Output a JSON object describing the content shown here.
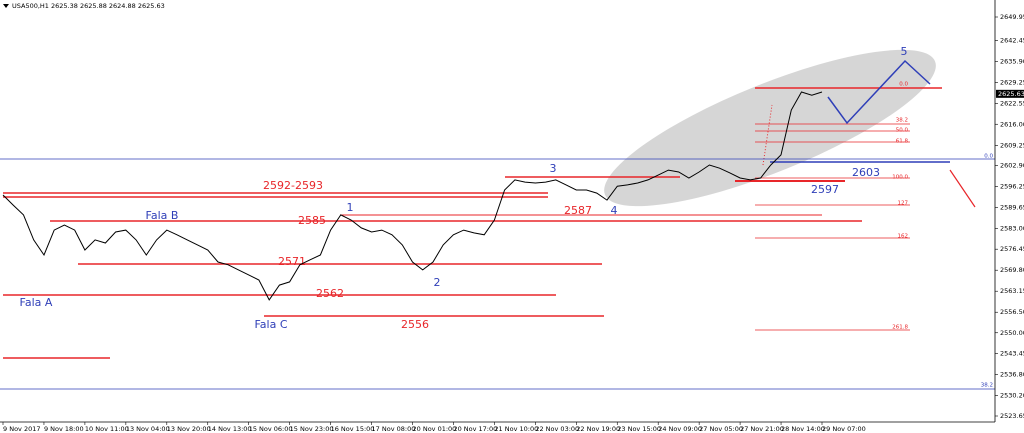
{
  "chart_data": {
    "type": "line",
    "title": "USA500,H1  2625.38 2625.88 2624.88 2625.63",
    "ylim": [
      2523.65,
      2649.95
    ],
    "yticks": [
      2649.95,
      2642.45,
      {
        "value": 2635.9,
        "label": "2635.90"
      },
      2629.25,
      2622.55,
      {
        "value": 2616,
        "label": "2616.00"
      },
      2609.25,
      {
        "value": 2602.9,
        "label": "2602.90"
      },
      2596.25,
      2589.65,
      {
        "value": 2583,
        "label": "2583.00"
      },
      2576.45,
      {
        "value": 2569.8,
        "label": "2569.80"
      },
      2563.15,
      {
        "value": 2556.5,
        "label": "2556.50"
      },
      {
        "value": 2550,
        "label": "2550.00"
      },
      2543.45,
      {
        "value": 2536.8,
        "label": "2536.80"
      },
      {
        "value": 2530.2,
        "label": "2530.20"
      },
      2523.65
    ],
    "x_labels": [
      "9 Nov 2017",
      "9 Nov 18:00",
      "10 Nov 11:00",
      "13 Nov 04:00",
      "13 Nov 20:00",
      "14 Nov 13:00",
      "15 Nov 06:00",
      "15 Nov 23:00",
      "16 Nov 15:00",
      "17 Nov 08:00",
      "20 Nov 01:00",
      "20 Nov 17:00",
      "21 Nov 10:00",
      "22 Nov 03:00",
      "22 Nov 19:00",
      "23 Nov 15:00",
      "24 Nov 09:00",
      "27 Nov 05:00",
      "27 Nov 21:00",
      "28 Nov 14:00",
      "29 Nov 07:00"
    ],
    "last_price": 2625.63,
    "series": [
      {
        "name": "USA500,H1",
        "color": "#000000",
        "values": [
          2593.6,
          2590.4,
          2587.3,
          2579.4,
          2574.6,
          2582.5,
          2584.1,
          2582.5,
          2576.2,
          2579.4,
          2578.4,
          2581.9,
          2582.5,
          2579.4,
          2574.6,
          2579.4,
          2582.5,
          2581.0,
          2579.4,
          2577.8,
          2576.2,
          2572.4,
          2571.5,
          2569.9,
          2568.3,
          2566.7,
          2560.4,
          2565.1,
          2566.1,
          2571.5,
          2573.1,
          2574.6,
          2582.5,
          2587.3,
          2585.7,
          2583.2,
          2581.9,
          2582.5,
          2581.0,
          2577.8,
          2572.4,
          2569.9,
          2572.4,
          2577.8,
          2581.0,
          2582.5,
          2581.6,
          2581.0,
          2585.7,
          2595.2,
          2598.4,
          2597.7,
          2597.4,
          2597.7,
          2598.4,
          2596.8,
          2595.2,
          2595.2,
          2594.2,
          2592.0,
          2596.4,
          2596.8,
          2597.4,
          2598.4,
          2599.9,
          2601.5,
          2600.9,
          2599.0,
          2600.9,
          2603.1,
          2602.1,
          2600.6,
          2599.0,
          2598.4,
          2599.0,
          2603.1,
          2606.3,
          2620.5,
          2626.2,
          2625.2,
          2626.2
        ]
      }
    ],
    "annotations": {
      "levels": [
        "2592-2593",
        "2585",
        "2587",
        "2571",
        "2562",
        "2556",
        "2597",
        "2603"
      ],
      "waves": [
        "Fala A",
        "Fala B",
        "Fala C",
        "1",
        "2",
        "3",
        "4",
        "5"
      ],
      "fib": [
        "0.0",
        "38.2",
        "50.0",
        "61.8",
        "100.0",
        "127",
        "162",
        "261.8"
      ],
      "fib_blue": [
        "0.0",
        "38.2"
      ]
    }
  }
}
